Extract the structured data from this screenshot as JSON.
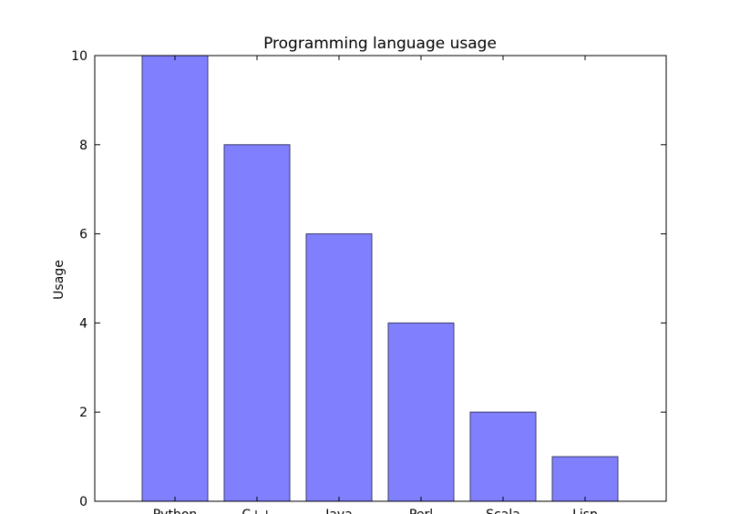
{
  "chart_data": {
    "type": "bar",
    "title": "Programming language usage",
    "y_label": "Usage",
    "categories": [
      "Python",
      "C++",
      "Java",
      "Perl",
      "Scala",
      "Lisp"
    ],
    "values": [
      10,
      8,
      6,
      4,
      2,
      1
    ],
    "color": "#8080ff",
    "ylim": [
      0,
      10
    ],
    "yticks": [
      0,
      2,
      4,
      6,
      8,
      10
    ]
  }
}
